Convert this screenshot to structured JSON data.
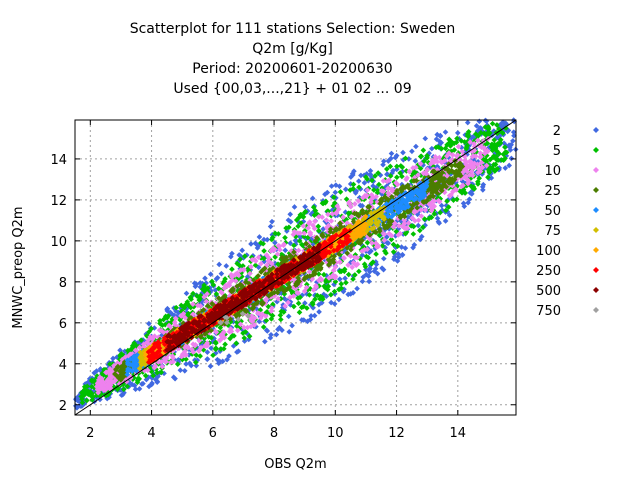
{
  "chart_data": {
    "type": "scatter",
    "title_lines": [
      "Scatterplot for  111 stations Selection: Sweden",
      "Q2m [g/Kg]",
      "Period: 20200601-20200630",
      "Used {00,03,...,21} + 01 02 ... 09"
    ],
    "xlabel": "OBS Q2m",
    "ylabel": "MNWC_preop Q2m",
    "xlim": [
      1.5,
      15.9
    ],
    "ylim": [
      1.5,
      15.9
    ],
    "x_ticks": [
      2,
      4,
      6,
      8,
      10,
      12,
      14
    ],
    "y_ticks": [
      2,
      4,
      6,
      8,
      10,
      12,
      14
    ],
    "grid": true,
    "diagonal_line": true,
    "legend_position": "right",
    "series": [
      {
        "name": "2",
        "color": "#4169e1"
      },
      {
        "name": "5",
        "color": "#00c000"
      },
      {
        "name": "10",
        "color": "#ee82ee"
      },
      {
        "name": "25",
        "color": "#4b7d00"
      },
      {
        "name": "50",
        "color": "#1e8cff"
      },
      {
        "name": "75",
        "color": "#d2be00"
      },
      {
        "name": "100",
        "color": "#ffaa00"
      },
      {
        "name": "250",
        "color": "#ff0000"
      },
      {
        "name": "500",
        "color": "#8b0000"
      },
      {
        "name": "750",
        "color": "#a0a0a0"
      }
    ],
    "density_bands": [
      {
        "series": "2",
        "x_range": [
          1.5,
          15.9
        ],
        "min_y_x": [
          2.4,
          0.62,
          -0.6
        ],
        "max_y_x": [
          4.6,
          0.85,
          1.7
        ]
      },
      {
        "series": "5",
        "x_range": [
          1.7,
          15.6
        ],
        "min_y_x": [
          2.6,
          0.62,
          -0.4
        ],
        "max_y_x": [
          4.4,
          0.8,
          1.4
        ]
      },
      {
        "series": "10",
        "x_range": [
          2.2,
          15.0
        ],
        "min_y_x": [
          2.9,
          0.64,
          -0.3
        ],
        "max_y_x": [
          4.1,
          0.78,
          1.1
        ]
      },
      {
        "series": "25",
        "x_range": [
          2.8,
          14.2
        ],
        "min_y_x": [
          3.2,
          0.68,
          0.0
        ],
        "max_y_x": [
          3.8,
          0.76,
          0.7
        ]
      },
      {
        "series": "50",
        "x_range": [
          3.2,
          13.0
        ],
        "min_y_x": [
          3.5,
          0.72,
          0.3
        ],
        "max_y_x": [
          3.5,
          0.76,
          0.3
        ]
      },
      {
        "series": "75",
        "x_range": [
          3.6,
          11.6
        ],
        "min_y_x": [
          3.7,
          0.75,
          0.5
        ],
        "max_y_x": [
          3.2,
          0.78,
          0.0
        ]
      },
      {
        "series": "100",
        "x_range": [
          3.8,
          11.0
        ],
        "min_y_x": [
          3.9,
          0.77,
          0.6
        ],
        "max_y_x": [
          3.0,
          0.79,
          -0.1
        ]
      },
      {
        "series": "250",
        "x_range": [
          3.9,
          10.5
        ],
        "min_y_x": [
          4.1,
          0.8,
          0.7
        ],
        "max_y_x": [
          2.8,
          0.8,
          -0.3
        ]
      },
      {
        "series": "500",
        "x_range": [
          4.5,
          9.5
        ],
        "min_y_x": [
          4.3,
          0.82,
          0.8
        ],
        "max_y_x": [
          2.6,
          0.81,
          -0.4
        ]
      },
      {
        "series": "750",
        "x_range": [
          6.0,
          7.4
        ],
        "min_y_x": [
          5.8,
          0.0,
          0.0
        ],
        "max_y_x": [
          6.6,
          0.0,
          0.0
        ]
      }
    ]
  }
}
